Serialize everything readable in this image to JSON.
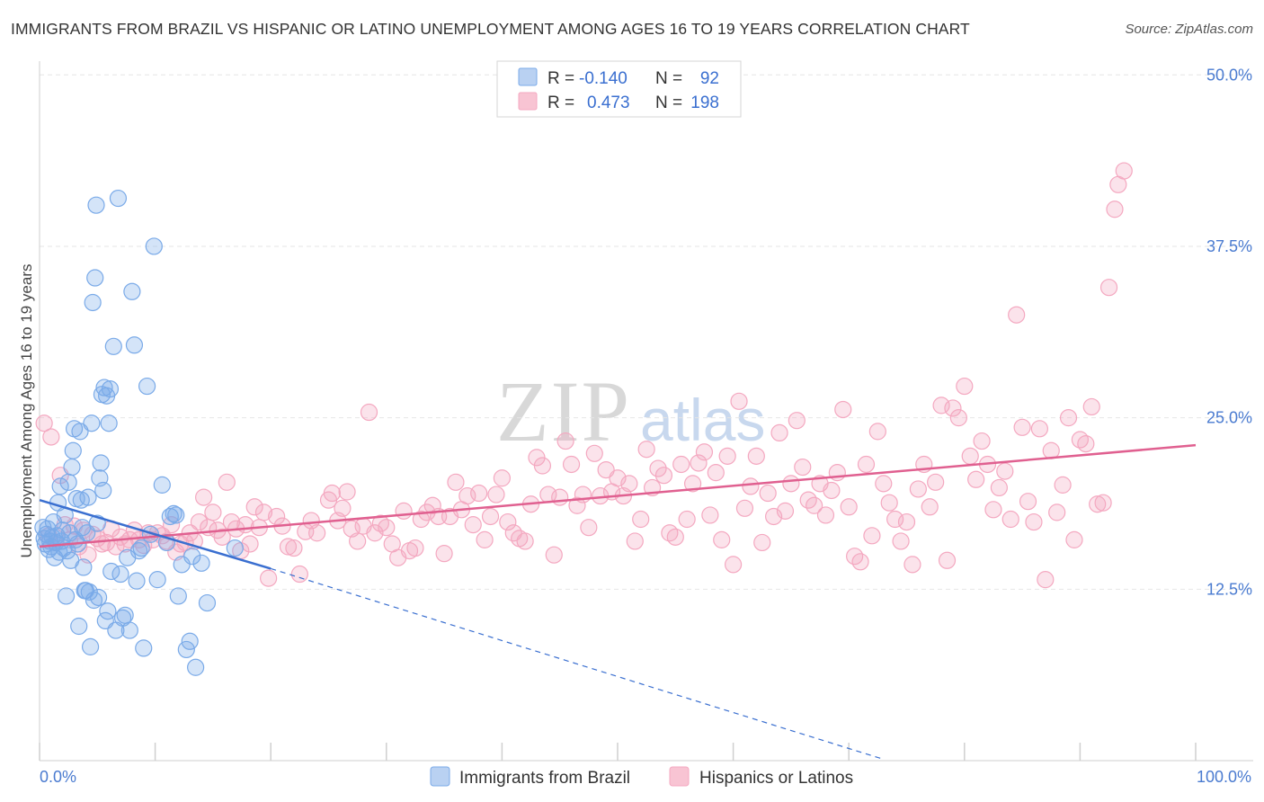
{
  "title": "IMMIGRANTS FROM BRAZIL VS HISPANIC OR LATINO UNEMPLOYMENT AMONG AGES 16 TO 19 YEARS CORRELATION CHART",
  "source": "Source: ZipAtlas.com",
  "watermark": {
    "zip": "ZIP",
    "atlas": "atlas"
  },
  "stats": {
    "row1": {
      "r_label": "R =",
      "r_value": "-0.140",
      "n_label": "N =",
      "n_value": "92"
    },
    "row2": {
      "r_label": "R =",
      "r_value": "0.473",
      "n_label": "N =",
      "n_value": "198"
    }
  },
  "chart_data": {
    "type": "scatter",
    "title": "IMMIGRANTS FROM BRAZIL VS HISPANIC OR LATINO UNEMPLOYMENT AMONG AGES 16 TO 19 YEARS CORRELATION CHART",
    "xlabel": "",
    "ylabel": "Unemployment Among Ages 16 to 19 years",
    "xlim": [
      0,
      100
    ],
    "ylim": [
      0,
      51
    ],
    "x_tick_labels": [
      "0.0%",
      "100.0%"
    ],
    "y_ticks": [
      12.5,
      25.0,
      37.5,
      50.0
    ],
    "y_tick_labels": [
      "12.5%",
      "25.0%",
      "37.5%",
      "50.0%"
    ],
    "colors": {
      "brazil": "#7aaae8",
      "brazil_line": "#3a6fd0",
      "hispanic": "#f4a8c0",
      "hispanic_line": "#e06090"
    },
    "series": [
      {
        "name": "Immigrants from Brazil",
        "r": -0.14,
        "n": 92,
        "trend": {
          "x0": 0,
          "y0": 19.0,
          "x1": 20,
          "y1": 14.0,
          "dash_to_x": 73,
          "dash_to_y": 0.1
        },
        "points": [
          [
            0.3,
            17.0
          ],
          [
            0.4,
            16.2
          ],
          [
            0.5,
            15.8
          ],
          [
            0.6,
            16.5
          ],
          [
            0.7,
            16.9
          ],
          [
            0.8,
            15.4
          ],
          [
            0.9,
            16.0
          ],
          [
            1.0,
            15.6
          ],
          [
            1.1,
            16.3
          ],
          [
            1.2,
            17.4
          ],
          [
            1.3,
            14.8
          ],
          [
            1.4,
            15.9
          ],
          [
            1.5,
            16.4
          ],
          [
            1.6,
            18.8
          ],
          [
            1.7,
            15.2
          ],
          [
            1.8,
            20.0
          ],
          [
            1.9,
            16.0
          ],
          [
            2.0,
            16.8
          ],
          [
            2.1,
            15.5
          ],
          [
            2.2,
            17.9
          ],
          [
            2.3,
            12.0
          ],
          [
            2.4,
            15.3
          ],
          [
            2.5,
            20.3
          ],
          [
            2.6,
            16.6
          ],
          [
            2.7,
            14.6
          ],
          [
            2.8,
            21.4
          ],
          [
            2.9,
            22.6
          ],
          [
            3.0,
            24.2
          ],
          [
            3.1,
            16.1
          ],
          [
            3.2,
            19.1
          ],
          [
            3.3,
            15.8
          ],
          [
            3.4,
            9.8
          ],
          [
            3.5,
            24.0
          ],
          [
            3.6,
            19.0
          ],
          [
            3.7,
            17.0
          ],
          [
            3.8,
            14.1
          ],
          [
            3.9,
            12.4
          ],
          [
            4.0,
            12.4
          ],
          [
            4.1,
            16.6
          ],
          [
            4.2,
            19.2
          ],
          [
            4.3,
            12.3
          ],
          [
            4.4,
            8.3
          ],
          [
            4.5,
            24.6
          ],
          [
            4.6,
            33.4
          ],
          [
            4.7,
            11.7
          ],
          [
            4.8,
            35.2
          ],
          [
            4.9,
            40.5
          ],
          [
            5.0,
            17.3
          ],
          [
            5.1,
            11.9
          ],
          [
            5.2,
            20.6
          ],
          [
            5.3,
            21.7
          ],
          [
            5.4,
            26.7
          ],
          [
            5.5,
            19.7
          ],
          [
            5.6,
            27.2
          ],
          [
            5.7,
            10.2
          ],
          [
            5.8,
            26.6
          ],
          [
            5.9,
            10.9
          ],
          [
            6.0,
            24.6
          ],
          [
            6.1,
            27.1
          ],
          [
            6.2,
            13.8
          ],
          [
            6.4,
            30.2
          ],
          [
            6.6,
            9.5
          ],
          [
            6.8,
            41.0
          ],
          [
            7.0,
            13.6
          ],
          [
            7.2,
            10.4
          ],
          [
            7.4,
            10.6
          ],
          [
            7.6,
            14.8
          ],
          [
            7.8,
            9.5
          ],
          [
            8.0,
            34.2
          ],
          [
            8.2,
            30.3
          ],
          [
            8.4,
            13.1
          ],
          [
            8.6,
            15.3
          ],
          [
            8.8,
            15.5
          ],
          [
            9.0,
            8.2
          ],
          [
            9.3,
            27.3
          ],
          [
            9.6,
            16.5
          ],
          [
            9.9,
            37.5
          ],
          [
            10.2,
            13.2
          ],
          [
            10.6,
            20.1
          ],
          [
            11.0,
            15.9
          ],
          [
            11.3,
            17.8
          ],
          [
            11.6,
            18.0
          ],
          [
            11.8,
            17.9
          ],
          [
            12.0,
            12.0
          ],
          [
            12.3,
            14.3
          ],
          [
            12.7,
            8.1
          ],
          [
            13.0,
            8.7
          ],
          [
            13.2,
            14.9
          ],
          [
            13.5,
            6.8
          ],
          [
            14.0,
            14.4
          ],
          [
            14.5,
            11.5
          ],
          [
            16.9,
            15.5
          ]
        ]
      },
      {
        "name": "Hispanics or Latinos",
        "r": 0.473,
        "n": 198,
        "trend": {
          "x0": 0,
          "y0": 15.6,
          "x1": 100,
          "y1": 23.0
        },
        "points": [
          [
            0.4,
            24.6
          ],
          [
            0.8,
            16.4
          ],
          [
            1.0,
            23.6
          ],
          [
            1.4,
            15.9
          ],
          [
            1.8,
            20.8
          ],
          [
            2.2,
            17.2
          ],
          [
            2.6,
            16.1
          ],
          [
            3.0,
            17.1
          ],
          [
            3.4,
            15.6
          ],
          [
            3.8,
            16.8
          ],
          [
            4.2,
            15.0
          ],
          [
            4.6,
            16.5
          ],
          [
            5.0,
            16.2
          ],
          [
            5.4,
            15.8
          ],
          [
            5.8,
            15.9
          ],
          [
            6.2,
            16.9
          ],
          [
            6.6,
            15.6
          ],
          [
            7.0,
            16.3
          ],
          [
            7.4,
            15.8
          ],
          [
            7.8,
            16.1
          ],
          [
            8.2,
            16.8
          ],
          [
            8.6,
            16.1
          ],
          [
            9.0,
            15.7
          ],
          [
            9.4,
            16.6
          ],
          [
            9.8,
            16.1
          ],
          [
            10.2,
            16.6
          ],
          [
            10.6,
            16.4
          ],
          [
            11.0,
            16.0
          ],
          [
            11.4,
            17.2
          ],
          [
            11.8,
            15.2
          ],
          [
            12.2,
            15.8
          ],
          [
            12.6,
            15.9
          ],
          [
            13.0,
            16.6
          ],
          [
            13.4,
            16.0
          ],
          [
            13.8,
            17.4
          ],
          [
            14.2,
            19.2
          ],
          [
            14.6,
            17.0
          ],
          [
            15.0,
            18.1
          ],
          [
            15.4,
            16.8
          ],
          [
            15.8,
            16.3
          ],
          [
            16.2,
            20.3
          ],
          [
            16.6,
            17.4
          ],
          [
            17.0,
            16.9
          ],
          [
            17.4,
            15.3
          ],
          [
            17.8,
            17.2
          ],
          [
            18.2,
            15.8
          ],
          [
            18.6,
            18.5
          ],
          [
            19.0,
            17.0
          ],
          [
            19.4,
            18.1
          ],
          [
            19.8,
            13.3
          ],
          [
            20.5,
            17.8
          ],
          [
            21.0,
            17.1
          ],
          [
            21.5,
            15.6
          ],
          [
            22.0,
            15.5
          ],
          [
            22.5,
            13.6
          ],
          [
            23.0,
            16.7
          ],
          [
            23.5,
            17.5
          ],
          [
            24.0,
            16.6
          ],
          [
            25.0,
            19.0
          ],
          [
            25.3,
            19.5
          ],
          [
            25.8,
            17.5
          ],
          [
            26.2,
            18.4
          ],
          [
            26.6,
            19.6
          ],
          [
            27.0,
            16.9
          ],
          [
            27.5,
            16.0
          ],
          [
            28.0,
            17.1
          ],
          [
            28.5,
            25.4
          ],
          [
            29.0,
            16.6
          ],
          [
            29.5,
            17.3
          ],
          [
            30.0,
            17.0
          ],
          [
            30.5,
            15.8
          ],
          [
            31.0,
            14.8
          ],
          [
            31.5,
            18.2
          ],
          [
            32.0,
            15.3
          ],
          [
            32.5,
            15.5
          ],
          [
            33.0,
            17.6
          ],
          [
            33.5,
            18.1
          ],
          [
            34.0,
            18.6
          ],
          [
            34.5,
            17.8
          ],
          [
            35.0,
            15.1
          ],
          [
            35.5,
            17.8
          ],
          [
            36.0,
            20.3
          ],
          [
            36.5,
            18.3
          ],
          [
            37.0,
            19.3
          ],
          [
            37.5,
            17.2
          ],
          [
            38.0,
            19.5
          ],
          [
            38.5,
            16.1
          ],
          [
            39.0,
            17.8
          ],
          [
            39.5,
            19.4
          ],
          [
            40.0,
            20.6
          ],
          [
            40.5,
            17.4
          ],
          [
            41.0,
            16.6
          ],
          [
            41.5,
            16.2
          ],
          [
            42.0,
            16.0
          ],
          [
            42.5,
            18.7
          ],
          [
            43.0,
            22.1
          ],
          [
            43.5,
            21.5
          ],
          [
            44.0,
            19.4
          ],
          [
            44.5,
            15.0
          ],
          [
            45.0,
            19.2
          ],
          [
            45.5,
            23.3
          ],
          [
            46.0,
            21.6
          ],
          [
            46.5,
            18.6
          ],
          [
            47.0,
            19.4
          ],
          [
            47.5,
            17.0
          ],
          [
            48.0,
            22.4
          ],
          [
            48.5,
            19.3
          ],
          [
            49.0,
            21.2
          ],
          [
            49.5,
            19.6
          ],
          [
            50.0,
            20.6
          ],
          [
            50.5,
            19.3
          ],
          [
            51.0,
            20.2
          ],
          [
            51.5,
            16.0
          ],
          [
            52.0,
            17.6
          ],
          [
            52.5,
            22.7
          ],
          [
            53.0,
            19.9
          ],
          [
            53.5,
            21.3
          ],
          [
            54.0,
            20.8
          ],
          [
            54.5,
            16.6
          ],
          [
            55.0,
            16.3
          ],
          [
            55.5,
            21.6
          ],
          [
            56.0,
            17.6
          ],
          [
            56.5,
            20.2
          ],
          [
            57.0,
            21.7
          ],
          [
            57.5,
            22.5
          ],
          [
            58.0,
            17.9
          ],
          [
            58.5,
            21.0
          ],
          [
            59.0,
            16.1
          ],
          [
            59.5,
            22.2
          ],
          [
            60.0,
            14.3
          ],
          [
            60.5,
            26.2
          ],
          [
            61.0,
            18.4
          ],
          [
            61.5,
            20.0
          ],
          [
            62.0,
            22.2
          ],
          [
            62.5,
            15.9
          ],
          [
            63.0,
            19.5
          ],
          [
            63.5,
            17.8
          ],
          [
            64.0,
            23.9
          ],
          [
            64.5,
            18.2
          ],
          [
            65.0,
            20.2
          ],
          [
            65.5,
            24.8
          ],
          [
            66.0,
            21.4
          ],
          [
            66.5,
            19.0
          ],
          [
            67.0,
            18.6
          ],
          [
            67.5,
            20.2
          ],
          [
            68.0,
            17.9
          ],
          [
            68.5,
            19.7
          ],
          [
            69.0,
            21.0
          ],
          [
            69.5,
            25.6
          ],
          [
            70.0,
            18.5
          ],
          [
            70.5,
            14.9
          ],
          [
            71.0,
            14.5
          ],
          [
            71.5,
            21.6
          ],
          [
            72.0,
            16.4
          ],
          [
            72.5,
            24.0
          ],
          [
            73.0,
            20.2
          ],
          [
            73.5,
            18.8
          ],
          [
            74.0,
            17.6
          ],
          [
            74.5,
            16.0
          ],
          [
            75.0,
            17.4
          ],
          [
            75.5,
            14.3
          ],
          [
            76.0,
            19.8
          ],
          [
            76.5,
            21.6
          ],
          [
            77.0,
            18.5
          ],
          [
            77.5,
            20.3
          ],
          [
            78.0,
            25.9
          ],
          [
            78.5,
            14.6
          ],
          [
            79.0,
            25.7
          ],
          [
            79.5,
            25.0
          ],
          [
            80.0,
            27.3
          ],
          [
            80.5,
            22.2
          ],
          [
            81.0,
            20.5
          ],
          [
            81.5,
            23.3
          ],
          [
            82.0,
            21.6
          ],
          [
            82.5,
            18.3
          ],
          [
            83.0,
            19.9
          ],
          [
            83.5,
            21.1
          ],
          [
            84.0,
            17.6
          ],
          [
            84.5,
            32.5
          ],
          [
            85.0,
            24.3
          ],
          [
            85.5,
            18.9
          ],
          [
            86.0,
            17.4
          ],
          [
            86.5,
            24.2
          ],
          [
            87.0,
            13.2
          ],
          [
            87.5,
            22.6
          ],
          [
            88.0,
            18.1
          ],
          [
            88.5,
            20.1
          ],
          [
            89.0,
            25.0
          ],
          [
            89.5,
            16.1
          ],
          [
            90.0,
            23.4
          ],
          [
            90.5,
            23.1
          ],
          [
            91.0,
            25.8
          ],
          [
            91.5,
            18.7
          ],
          [
            92.0,
            18.8
          ],
          [
            92.5,
            34.5
          ],
          [
            93.0,
            40.2
          ],
          [
            93.3,
            42.0
          ],
          [
            93.8,
            43.0
          ]
        ]
      }
    ]
  },
  "legend": {
    "brazil": "Immigrants from Brazil",
    "hispanic": "Hispanics or Latinos"
  }
}
